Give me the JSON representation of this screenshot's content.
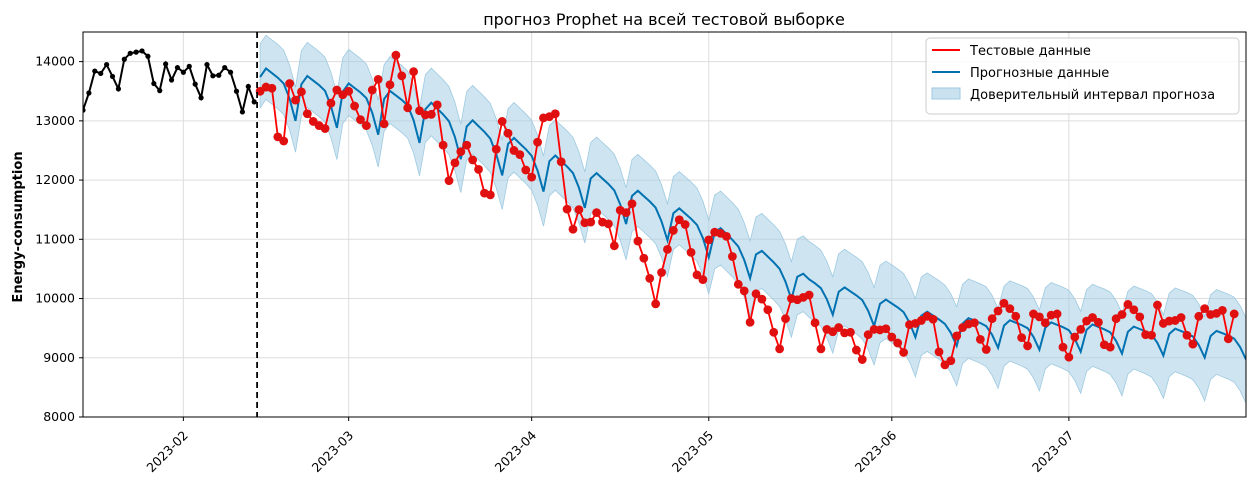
{
  "chart_data": {
    "type": "line",
    "title": "прогноз Prophet на всей тестовой выборке",
    "xlabel": "",
    "ylabel": "Energy-consumption",
    "x_range": [
      "2023-01-15",
      "2023-07-31"
    ],
    "ylim": [
      8000,
      14500
    ],
    "x_ticks": [
      "2023-02",
      "2023-03",
      "2023-04",
      "2023-05",
      "2023-06",
      "2023-07"
    ],
    "y_ticks": [
      8000,
      9000,
      10000,
      11000,
      12000,
      13000,
      14000
    ],
    "grid": true,
    "legend_position": "top-right",
    "split_date": "2023-02-14",
    "legend": [
      "Тестовые данные",
      "Прогнозные данные",
      "Доверительный интервал прогноза"
    ],
    "colors": {
      "train": "#000000",
      "test": "#ff0000",
      "test_marker": "#e01010",
      "forecast": "#0072b2",
      "interval": "#9ecae1",
      "grid": "#dddddd"
    },
    "series": [
      {
        "name": "",
        "kind": "train",
        "start": "2023-01-15",
        "values": [
          13180,
          13470,
          13840,
          13800,
          13950,
          13750,
          13540,
          14040,
          14140,
          14160,
          14180,
          14090,
          13630,
          13510,
          13960,
          13690,
          13900,
          13820,
          13920,
          13620,
          13390,
          13950,
          13760,
          13770,
          13900,
          13820,
          13500,
          13150,
          13580,
          13320
        ]
      },
      {
        "name": "Тестовые данные",
        "kind": "test",
        "start": "2023-02-14",
        "values": [
          13500,
          13570,
          13550,
          12730,
          12660,
          13630,
          13350,
          13490,
          13120,
          12990,
          12920,
          12870,
          13300,
          13520,
          13440,
          13500,
          13250,
          13020,
          12920,
          13520,
          13700,
          12950,
          13610,
          14110,
          13760,
          13220,
          13830,
          13170,
          13100,
          13110,
          13270,
          12590,
          11990,
          12290,
          12480,
          12590,
          12340,
          12180,
          11780,
          11750,
          12520,
          12990,
          12790,
          12500,
          12430,
          12170,
          12050,
          12640,
          13050,
          13070,
          13120,
          12310,
          11510,
          11170,
          11500,
          11280,
          11290,
          11450,
          11290,
          11260,
          10890,
          11490,
          11450,
          11600,
          10970,
          10680,
          10340,
          9910,
          10440,
          10830,
          11150,
          11330,
          11250,
          10780,
          10400,
          10320,
          10990,
          11120,
          11100,
          11050,
          10710,
          10240,
          10130,
          9600,
          10080,
          9990,
          9810,
          9430,
          9150,
          9660,
          10000,
          9980,
          10020,
          10060,
          9590,
          9150,
          9480,
          9440,
          9510,
          9420,
          9430,
          9130,
          8970,
          9390,
          9480,
          9470,
          9490,
          9350,
          9250,
          9090,
          9560,
          9580,
          9630,
          9700,
          9650,
          9100,
          8880,
          8950,
          9370,
          9510,
          9570,
          9590,
          9310,
          9140,
          9660,
          9790,
          9920,
          9830,
          9700,
          9340,
          9200,
          9740,
          9690,
          9590,
          9720,
          9740,
          9180,
          9010,
          9350,
          9480,
          9620,
          9680,
          9600,
          9220,
          9180,
          9660,
          9730,
          9900,
          9810,
          9690,
          9390,
          9380,
          9890,
          9580,
          9620,
          9630,
          9680,
          9380,
          9230,
          9700,
          9830,
          9730,
          9750,
          9800,
          9320,
          9740
        ]
      },
      {
        "name": "Прогнозные данные",
        "kind": "forecast",
        "start": "2023-02-14",
        "week_pattern": [
          0.6,
          1.0,
          0.85,
          0.7,
          0.5,
          -0.1,
          -1.0
        ],
        "trend_knots": [
          [
            "2023-02-14",
            13500
          ],
          [
            "2023-03-12",
            13050
          ],
          [
            "2023-04-30",
            11050
          ],
          [
            "2023-05-18",
            10100
          ],
          [
            "2023-06-10",
            9450
          ],
          [
            "2023-07-31",
            9200
          ]
        ],
        "weekly_amplitude": 730
      },
      {
        "name": "Доверительный интервал прогноза",
        "kind": "interval",
        "lower_offset_start": 520,
        "lower_offset_end": 740,
        "upper_offset_start": 560,
        "upper_offset_end": 700
      }
    ]
  }
}
